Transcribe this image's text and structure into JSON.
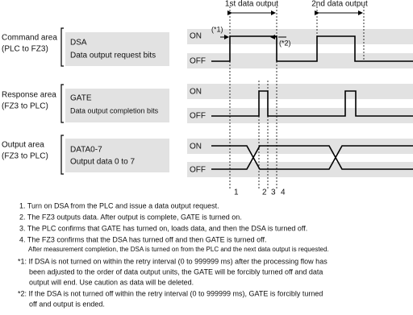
{
  "phases": [
    "1st data output",
    "2nd data output"
  ],
  "areas": [
    {
      "title": [
        "Command area",
        "(PLC to FZ3)"
      ],
      "signal": "DSA",
      "description": "Data output request bits",
      "on": "ON",
      "off": "OFF"
    },
    {
      "title": [
        "Response area",
        "(FZ3 to PLC)"
      ],
      "signal": "GATE",
      "description": "Data output completion bits",
      "on": "ON",
      "off": "OFF"
    },
    {
      "title": [
        "Output area",
        "(FZ3 to PLC)"
      ],
      "signal": "DATA0-7",
      "description": "Output data 0 to 7",
      "on": "ON",
      "off": "OFF"
    }
  ],
  "annotations": [
    "(*1)",
    "(*2)"
  ],
  "markers": [
    "1",
    "2",
    "3",
    "4"
  ],
  "steps": [
    "1. Turn on DSA from the PLC and issue a data output request.",
    "2. The FZ3 outputs data. After output is complete, GATE is turned on.",
    "3. The PLC confirms that GATE has turned on, loads data, and then the DSA is turned off.",
    "4. The FZ3 confirms that the DSA has turned off and then GATE is turned off."
  ],
  "step_note": "After measurement completion, the DSA is turned on from the PLC and the next data output is requested.",
  "footnotes": [
    [
      "*1: If DSA is not turned on within the retry interval (0 to 999999 ms) after the processing flow has",
      "been adjusted to the order of data output units, the GATE will be forcibly turned off and data",
      "output will end. Use caution as data will be deleted."
    ],
    [
      "*2: If the DSA is not turned off within the retry interval (0 to 999999 ms), GATE is forcibly turned",
      "off and output is ended."
    ]
  ]
}
